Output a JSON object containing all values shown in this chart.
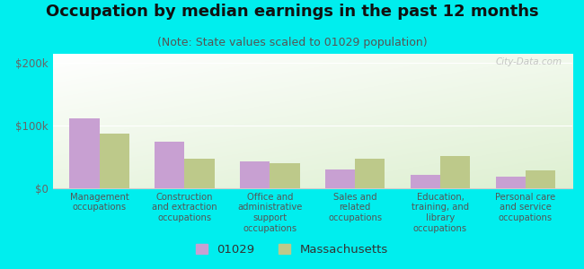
{
  "title": "Occupation by median earnings in the past 12 months",
  "subtitle": "(Note: State values scaled to 01029 population)",
  "categories": [
    "Management\noccupations",
    "Construction\nand extraction\noccupations",
    "Office and\nadministrative\nsupport\noccupations",
    "Sales and\nrelated\noccupations",
    "Education,\ntraining, and\nlibrary\noccupations",
    "Personal care\nand service\noccupations"
  ],
  "values_01029": [
    112000,
    75000,
    43000,
    30000,
    22000,
    18000
  ],
  "values_ma": [
    88000,
    48000,
    40000,
    47000,
    52000,
    28000
  ],
  "color_01029": "#c8a0d2",
  "color_ma": "#bdc98a",
  "bar_width": 0.35,
  "ylim": [
    0,
    215000
  ],
  "yticks": [
    0,
    100000,
    200000
  ],
  "ytick_labels": [
    "$0",
    "$100k",
    "$200k"
  ],
  "outer_background": "#00eeee",
  "watermark": "City-Data.com",
  "legend_01029": "01029",
  "legend_ma": "Massachusetts",
  "title_fontsize": 13,
  "subtitle_fontsize": 9,
  "tick_fontsize": 8.5,
  "legend_fontsize": 9.5
}
